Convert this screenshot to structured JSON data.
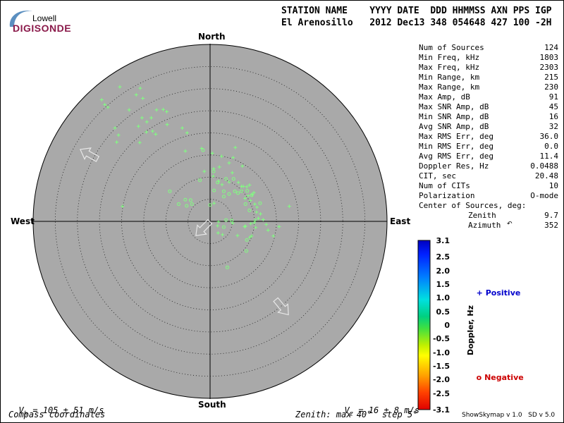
{
  "logo": {
    "top": "Lowell",
    "main": "DIGISONDE"
  },
  "header": {
    "line1": "STATION NAME    YYYY DATE  DDD HHMMSS AXN PPS IGP",
    "line2": "El Arenosillo   2012 Dec13 348 054648 427 100 -2H"
  },
  "stats": [
    {
      "label": "Num of Sources",
      "value": "124"
    },
    {
      "label": "Min Freq, kHz",
      "value": "1803"
    },
    {
      "label": "Max Freq, kHz",
      "value": "2303"
    },
    {
      "label": "Min Range, km",
      "value": "215"
    },
    {
      "label": "Max Range, km",
      "value": "230"
    },
    {
      "label": "Max Amp, dB",
      "value": "91"
    },
    {
      "label": "Max SNR Amp, dB",
      "value": "45"
    },
    {
      "label": "Min SNR Amp, dB",
      "value": "16"
    },
    {
      "label": "Avg SNR Amp, dB",
      "value": "32"
    },
    {
      "label": "Max RMS Err, deg",
      "value": "36.0"
    },
    {
      "label": "Min RMS Err, deg",
      "value": "0.0"
    },
    {
      "label": "Avg RMS Err, deg",
      "value": "11.4"
    },
    {
      "label": "Doppler Res, Hz",
      "value": "0.0488"
    },
    {
      "label": "CIT, sec",
      "value": "20.48"
    },
    {
      "label": "Num of CITs",
      "value": "10"
    },
    {
      "label": "Polarization",
      "value": "O-mode"
    }
  ],
  "center": {
    "label": "Center of Sources, deg:",
    "zenith_label": "Zenith",
    "zenith_value": "9.7",
    "azimuth_label": "Azimuth",
    "azimuth_value": "352"
  },
  "compass": {
    "north": "North",
    "south": "South",
    "east": "East",
    "west": "West"
  },
  "footer": {
    "vh": "V",
    "vh_sub": "h",
    "vh_value": " = 105 ± 51 m/s",
    "vz": "V",
    "vz_sub": "z",
    "vz_value": " = 16 ± 8 m/s",
    "coords": "Compass coordinates",
    "zenith": "Zenith: max 40°  step 5°",
    "version": "ShowSkymap v 1.0   SD v 5.0"
  },
  "colorbar": {
    "title": "Doppler, Hz",
    "ticks": [
      "3.1",
      "2.5",
      "2.0",
      "1.5",
      "1.0",
      "0.5",
      "0",
      "-0.5",
      "-1.0",
      "-1.5",
      "-2.0",
      "-2.5",
      "-3.1"
    ]
  },
  "legend": {
    "positive": "Positive",
    "negative": "Negative"
  },
  "colors": {
    "disk": "#a9a9a9",
    "marker": "#80ff80",
    "positive": "#0000cc",
    "negative": "#cc0000",
    "logo": "#8a1a4a"
  },
  "chart_data": {
    "type": "scatter",
    "coordinate_system": "polar (zenith angle, compass azimuth)",
    "rmax_deg": 40,
    "ring_step_deg": 5,
    "series": [
      {
        "marker": "+",
        "points": [
          [
            -24.5,
            27.5
          ],
          [
            -23.8,
            26.4
          ],
          [
            -23.1,
            25.8
          ],
          [
            -20.4,
            30.4
          ],
          [
            -16.7,
            28.6
          ],
          [
            -15.8,
            30.1
          ],
          [
            -15.2,
            27.8
          ],
          [
            -18.3,
            25.2
          ],
          [
            -15.4,
            23.4
          ],
          [
            -16.2,
            21.5
          ],
          [
            -14.3,
            22.5
          ],
          [
            -13.3,
            23.4
          ],
          [
            -12.1,
            25.2
          ],
          [
            -9.8,
            24.8
          ],
          [
            -10.6,
            25.3
          ],
          [
            -9.7,
            21.9
          ],
          [
            -13.0,
            20.4
          ],
          [
            -12.3,
            19.7
          ],
          [
            -14.4,
            20.2
          ],
          [
            -21.5,
            21.1
          ],
          [
            -20.7,
            19.5
          ],
          [
            -21.1,
            17.9
          ],
          [
            -15.9,
            17.8
          ],
          [
            -6.3,
            21.1
          ],
          [
            -5.2,
            20.0
          ],
          [
            -1.9,
            16.5
          ],
          [
            -5.6,
            15.9
          ],
          [
            0.5,
            15.4
          ],
          [
            2.6,
            14.7
          ],
          [
            5.7,
            16.7
          ],
          [
            5.2,
            14.4
          ],
          [
            4.3,
            13.2
          ],
          [
            2.1,
            12.3
          ],
          [
            0.8,
            11.9
          ],
          [
            5.0,
            11.0
          ],
          [
            7.3,
            12.5
          ],
          [
            -1.3,
            11.3
          ],
          [
            0.7,
            10.2
          ],
          [
            1.9,
            9.1
          ],
          [
            4.3,
            8.9
          ],
          [
            2.7,
            8.3
          ],
          [
            6.4,
            8.8
          ],
          [
            7.1,
            7.9
          ],
          [
            8.3,
            7.8
          ],
          [
            8.9,
            8.2
          ],
          [
            9.9,
            6.5
          ],
          [
            9.5,
            6.1
          ],
          [
            8.6,
            5.8
          ],
          [
            7.9,
            5.2
          ],
          [
            9.1,
            4.7
          ],
          [
            10.1,
            3.9
          ],
          [
            10.6,
            3.2
          ],
          [
            10.5,
            2.1
          ],
          [
            11.4,
            1.7
          ],
          [
            10.9,
            0.7
          ],
          [
            10.2,
            0.3
          ],
          [
            12.0,
            0.4
          ],
          [
            12.7,
            -0.7
          ],
          [
            10.3,
            -1.4
          ],
          [
            9.2,
            -0.5
          ],
          [
            8.0,
            -1.1
          ],
          [
            13.1,
            -2.0
          ],
          [
            15.6,
            -1.2
          ],
          [
            7.8,
            -1.2
          ],
          [
            9.4,
            -3.3
          ],
          [
            9.0,
            -3.6
          ],
          [
            1.9,
            -0.1
          ],
          [
            1.7,
            -1.0
          ],
          [
            1.8,
            -2.6
          ],
          [
            2.8,
            -3.0
          ],
          [
            6.2,
            -3.2
          ],
          [
            14.3,
            -3.3
          ],
          [
            5.1,
            -0.4
          ],
          [
            10.0,
            -0.3
          ],
          [
            17.9,
            3.4
          ],
          [
            7.5,
            7.9
          ],
          [
            0.9,
            4.1
          ],
          [
            -19.8,
            3.4
          ]
        ]
      },
      {
        "marker": "o",
        "points": [
          [
            -1.6,
            16.1
          ],
          [
            0.8,
            11.3
          ],
          [
            3.6,
            9.6
          ],
          [
            1.7,
            8.8
          ],
          [
            5.3,
            9.6
          ],
          [
            0.9,
            7.0
          ],
          [
            3.1,
            6.8
          ],
          [
            5.6,
            6.8
          ],
          [
            4.3,
            6.2
          ],
          [
            3.1,
            5.6
          ],
          [
            6.3,
            6.4
          ],
          [
            7.1,
            6.8
          ],
          [
            8.4,
            6.9
          ],
          [
            9.4,
            5.9
          ],
          [
            8.0,
            3.9
          ],
          [
            8.9,
            2.5
          ],
          [
            11.3,
            4.1
          ],
          [
            -4.4,
            4.8
          ],
          [
            -5.6,
            4.9
          ],
          [
            -4.1,
            3.9
          ],
          [
            -9.1,
            6.8
          ],
          [
            0.0,
            3.7
          ],
          [
            -5.3,
            3.5
          ],
          [
            3.6,
            0.3
          ],
          [
            3.1,
            -1.3
          ],
          [
            4.9,
            0.2
          ],
          [
            8.3,
            -4.2
          ],
          [
            8.2,
            -6.7
          ],
          [
            3.9,
            -10.4
          ],
          [
            -2.3,
            9.3
          ],
          [
            -7.1,
            3.9
          ]
        ]
      }
    ],
    "arrows": [
      {
        "zenith_deg": 31,
        "azimuth_deg": 299
      },
      {
        "zenith_deg": 2,
        "azimuth_deg": 225
      },
      {
        "zenith_deg": 25,
        "azimuth_deg": 140
      }
    ],
    "colorbar_range": [
      -3.1,
      3.1
    ]
  }
}
